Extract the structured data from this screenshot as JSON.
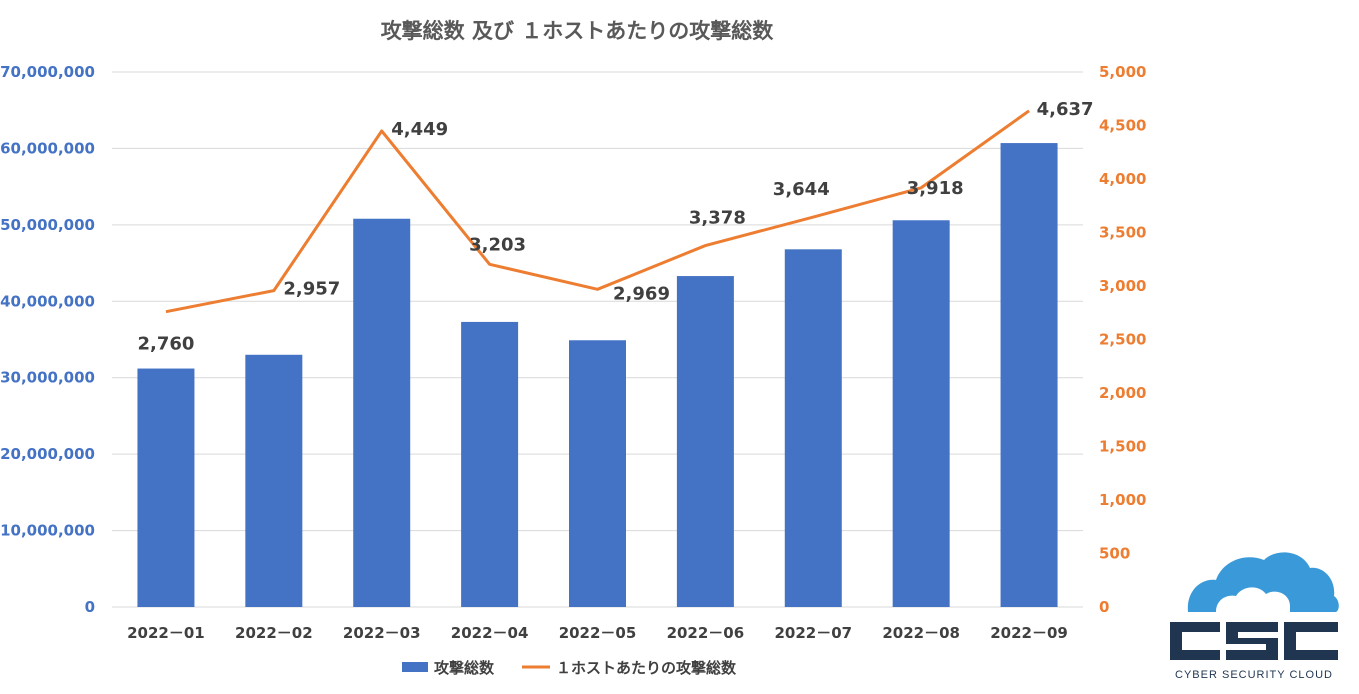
{
  "chart_data": {
    "type": "bar+line",
    "title": "攻撃総数 及び １ホストあたりの攻撃総数",
    "categories": [
      "2022－01",
      "2022－02",
      "2022－03",
      "2022－04",
      "2022－05",
      "2022－06",
      "2022－07",
      "2022－08",
      "2022－09"
    ],
    "series": [
      {
        "name": "攻撃総数",
        "type": "bar",
        "axis": "left",
        "color": "#4472C4",
        "values": [
          31200000,
          33000000,
          50800000,
          37300000,
          34900000,
          43300000,
          46800000,
          50600000,
          60700000
        ]
      },
      {
        "name": "１ホストあたりの攻撃総数",
        "type": "line",
        "axis": "right",
        "color": "#ED7D31",
        "values": [
          2760,
          2957,
          4449,
          3203,
          2969,
          3378,
          3644,
          3918,
          4637
        ],
        "labels": [
          "2,760",
          "2,957",
          "4,449",
          "3,203",
          "2,969",
          "3,378",
          "3,644",
          "3,918",
          "4,637"
        ]
      }
    ],
    "left_axis": {
      "ylim": [
        0,
        70000000
      ],
      "ticks": [
        0,
        10000000,
        20000000,
        30000000,
        40000000,
        50000000,
        60000000,
        70000000
      ],
      "tick_labels": [
        "0",
        "10,000,000",
        "20,000,000",
        "30,000,000",
        "40,000,000",
        "50,000,000",
        "60,000,000",
        "70,000,000"
      ],
      "color": "#4472C4"
    },
    "right_axis": {
      "ylim": [
        0,
        5000
      ],
      "ticks": [
        0,
        500,
        1000,
        1500,
        2000,
        2500,
        3000,
        3500,
        4000,
        4500,
        5000
      ],
      "tick_labels": [
        "0",
        "500",
        "1,000",
        "1,500",
        "2,000",
        "2,500",
        "3,000",
        "3,500",
        "4,000",
        "4,500",
        "5,000"
      ],
      "color": "#ED7D31"
    },
    "grid": true,
    "legend_position": "bottom"
  },
  "logo": {
    "letters": "CSC",
    "tagline": "CYBER SECURITY CLOUD"
  }
}
